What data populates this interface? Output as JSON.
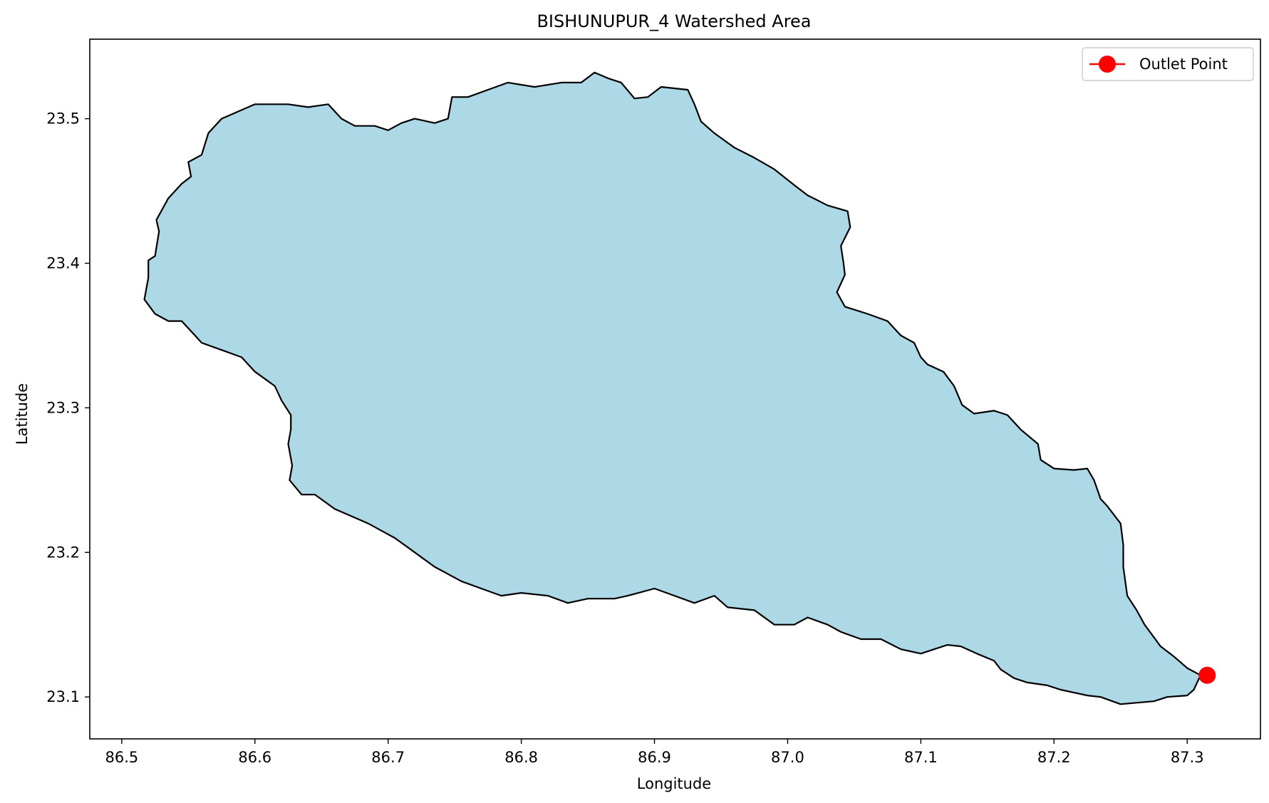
{
  "chart_data": {
    "type": "map",
    "title": "BISHUNUPUR_4 Watershed Area",
    "xlabel": "Longitude",
    "ylabel": "Latitude",
    "xlim": [
      86.476,
      87.355
    ],
    "ylim": [
      23.071,
      23.555
    ],
    "xticks": [
      86.5,
      86.6,
      86.7,
      86.8,
      86.9,
      87.0,
      87.1,
      87.2,
      87.3
    ],
    "xtick_labels": [
      "86.5",
      "86.6",
      "86.7",
      "86.8",
      "86.9",
      "87.0",
      "87.1",
      "87.2",
      "87.3"
    ],
    "yticks": [
      23.1,
      23.2,
      23.3,
      23.4,
      23.5
    ],
    "ytick_labels": [
      "23.1",
      "23.2",
      "23.3",
      "23.4",
      "23.5"
    ],
    "grid": false,
    "legend_position": "upper right",
    "legend": [
      {
        "label": "Outlet Point",
        "color": "#ff0000",
        "marker": "circle"
      }
    ],
    "watershed": {
      "fill": "#add8e6",
      "edge": "#000000",
      "boundary": [
        [
          86.517,
          23.375
        ],
        [
          86.52,
          23.39
        ],
        [
          86.52,
          23.402
        ],
        [
          86.525,
          23.405
        ],
        [
          86.528,
          23.422
        ],
        [
          86.526,
          23.43
        ],
        [
          86.535,
          23.445
        ],
        [
          86.545,
          23.455
        ],
        [
          86.552,
          23.46
        ],
        [
          86.55,
          23.47
        ],
        [
          86.56,
          23.475
        ],
        [
          86.565,
          23.49
        ],
        [
          86.575,
          23.5
        ],
        [
          86.6,
          23.51
        ],
        [
          86.625,
          23.51
        ],
        [
          86.64,
          23.508
        ],
        [
          86.655,
          23.51
        ],
        [
          86.665,
          23.5
        ],
        [
          86.675,
          23.495
        ],
        [
          86.69,
          23.495
        ],
        [
          86.7,
          23.492
        ],
        [
          86.71,
          23.497
        ],
        [
          86.72,
          23.5
        ],
        [
          86.735,
          23.497
        ],
        [
          86.745,
          23.5
        ],
        [
          86.748,
          23.515
        ],
        [
          86.76,
          23.515
        ],
        [
          86.775,
          23.52
        ],
        [
          86.79,
          23.525
        ],
        [
          86.81,
          23.522
        ],
        [
          86.83,
          23.525
        ],
        [
          86.845,
          23.525
        ],
        [
          86.855,
          23.532
        ],
        [
          86.865,
          23.528
        ],
        [
          86.875,
          23.525
        ],
        [
          86.885,
          23.514
        ],
        [
          86.895,
          23.515
        ],
        [
          86.905,
          23.522
        ],
        [
          86.925,
          23.52
        ],
        [
          86.93,
          23.51
        ],
        [
          86.935,
          23.498
        ],
        [
          86.945,
          23.49
        ],
        [
          86.96,
          23.48
        ],
        [
          86.975,
          23.473
        ],
        [
          86.99,
          23.465
        ],
        [
          87.005,
          23.454
        ],
        [
          87.015,
          23.447
        ],
        [
          87.03,
          23.44
        ],
        [
          87.045,
          23.436
        ],
        [
          87.047,
          23.425
        ],
        [
          87.04,
          23.412
        ],
        [
          87.042,
          23.4
        ],
        [
          87.043,
          23.392
        ],
        [
          87.037,
          23.38
        ],
        [
          87.043,
          23.37
        ],
        [
          87.06,
          23.365
        ],
        [
          87.075,
          23.36
        ],
        [
          87.085,
          23.35
        ],
        [
          87.095,
          23.345
        ],
        [
          87.1,
          23.335
        ],
        [
          87.105,
          23.33
        ],
        [
          87.117,
          23.325
        ],
        [
          87.125,
          23.315
        ],
        [
          87.131,
          23.302
        ],
        [
          87.14,
          23.296
        ],
        [
          87.155,
          23.298
        ],
        [
          87.165,
          23.295
        ],
        [
          87.175,
          23.285
        ],
        [
          87.188,
          23.275
        ],
        [
          87.19,
          23.264
        ],
        [
          87.2,
          23.258
        ],
        [
          87.215,
          23.257
        ],
        [
          87.225,
          23.258
        ],
        [
          87.23,
          23.25
        ],
        [
          87.235,
          23.237
        ],
        [
          87.24,
          23.232
        ],
        [
          87.25,
          23.22
        ],
        [
          87.252,
          23.205
        ],
        [
          87.252,
          23.19
        ],
        [
          87.255,
          23.17
        ],
        [
          87.262,
          23.16
        ],
        [
          87.268,
          23.15
        ],
        [
          87.28,
          23.135
        ],
        [
          87.29,
          23.128
        ],
        [
          87.3,
          23.12
        ],
        [
          87.31,
          23.115
        ],
        [
          87.305,
          23.105
        ],
        [
          87.3,
          23.101
        ],
        [
          87.285,
          23.1
        ],
        [
          87.275,
          23.097
        ],
        [
          87.262,
          23.096
        ],
        [
          87.25,
          23.095
        ],
        [
          87.235,
          23.1
        ],
        [
          87.225,
          23.101
        ],
        [
          87.205,
          23.105
        ],
        [
          87.195,
          23.108
        ],
        [
          87.18,
          23.11
        ],
        [
          87.17,
          23.113
        ],
        [
          87.16,
          23.119
        ],
        [
          87.155,
          23.125
        ],
        [
          87.142,
          23.13
        ],
        [
          87.13,
          23.135
        ],
        [
          87.12,
          23.136
        ],
        [
          87.1,
          23.13
        ],
        [
          87.085,
          23.133
        ],
        [
          87.07,
          23.14
        ],
        [
          87.055,
          23.14
        ],
        [
          87.04,
          23.145
        ],
        [
          87.03,
          23.15
        ],
        [
          87.015,
          23.155
        ],
        [
          87.005,
          23.15
        ],
        [
          86.99,
          23.15
        ],
        [
          86.975,
          23.16
        ],
        [
          86.955,
          23.162
        ],
        [
          86.945,
          23.17
        ],
        [
          86.93,
          23.165
        ],
        [
          86.915,
          23.17
        ],
        [
          86.9,
          23.175
        ],
        [
          86.88,
          23.17
        ],
        [
          86.87,
          23.168
        ],
        [
          86.85,
          23.168
        ],
        [
          86.835,
          23.165
        ],
        [
          86.82,
          23.17
        ],
        [
          86.8,
          23.172
        ],
        [
          86.785,
          23.17
        ],
        [
          86.77,
          23.175
        ],
        [
          86.755,
          23.18
        ],
        [
          86.745,
          23.185
        ],
        [
          86.735,
          23.19
        ],
        [
          86.72,
          23.2
        ],
        [
          86.705,
          23.21
        ],
        [
          86.695,
          23.215
        ],
        [
          86.685,
          23.22
        ],
        [
          86.66,
          23.23
        ],
        [
          86.645,
          23.24
        ],
        [
          86.635,
          23.24
        ],
        [
          86.626,
          23.25
        ],
        [
          86.628,
          23.26
        ],
        [
          86.625,
          23.275
        ],
        [
          86.627,
          23.285
        ],
        [
          86.627,
          23.295
        ],
        [
          86.62,
          23.305
        ],
        [
          86.615,
          23.315
        ],
        [
          86.6,
          23.325
        ],
        [
          86.59,
          23.335
        ],
        [
          86.575,
          23.34
        ],
        [
          86.56,
          23.345
        ],
        [
          86.555,
          23.35
        ],
        [
          86.545,
          23.36
        ],
        [
          86.535,
          23.36
        ],
        [
          86.525,
          23.365
        ],
        [
          86.517,
          23.375
        ]
      ]
    },
    "outlet_point": {
      "lon": 87.315,
      "lat": 23.115,
      "label": "Outlet Point",
      "color": "#ff0000"
    }
  }
}
